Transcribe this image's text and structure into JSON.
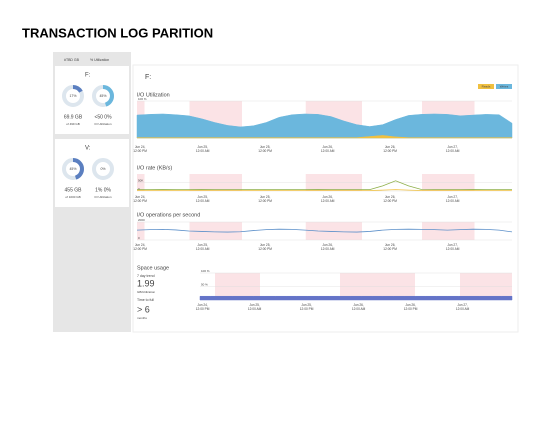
{
  "header": {
    "title": "TRANSACTION LOG PARITION"
  },
  "sidebar": {
    "tabs": [
      "#TBD GB",
      "% Utilization"
    ],
    "drives": [
      {
        "label": "F:",
        "donuts": [
          {
            "pct": 17,
            "label": "17%",
            "color": "#5b7fc0"
          },
          {
            "pct": 45,
            "label": "45%",
            "color": "#6bb7dd"
          }
        ],
        "stats": [
          {
            "value": "69.9 GB",
            "caption": "of 499 GB"
          },
          {
            "value": "<50 0%",
            "caption": "IO Utilization"
          }
        ]
      },
      {
        "label": "V:",
        "donuts": [
          {
            "pct": 45,
            "label": "45%",
            "color": "#5b7fc0"
          },
          {
            "pct": 0,
            "label": "0%",
            "color": "#6bb7dd"
          }
        ],
        "stats": [
          {
            "value": "455 GB",
            "caption": "of 1000 GB"
          },
          {
            "value": "1% 0%",
            "caption": "IO Utilization"
          }
        ]
      }
    ]
  },
  "main": {
    "drive": "F:",
    "legend": [
      {
        "name": "Reads",
        "color": "#f0c040"
      },
      {
        "name": "Writes",
        "color": "#6bb7dd"
      }
    ],
    "x_labels": [
      {
        "date": "Jun 24,",
        "time": "12:00 PM"
      },
      {
        "date": "Jun 25,",
        "time": "12:00 AM"
      },
      {
        "date": "Jun 25,",
        "time": "12:00 PM"
      },
      {
        "date": "Jun 26,",
        "time": "12:00 AM"
      },
      {
        "date": "Jun 26,",
        "time": "12:00 PM"
      },
      {
        "date": "Jun 27,",
        "time": "12:00 AM"
      }
    ],
    "charts": [
      {
        "title": "I/O Utilization",
        "ylim": [
          0,
          100
        ],
        "yticks": [
          {
            "value": 100,
            "label": "100 %"
          },
          {
            "value": 0,
            "label": "0"
          }
        ],
        "series": [
          {
            "name": "Writes",
            "color": "#6bb7dd",
            "area": true,
            "values": [
              62,
              64,
              65,
              63,
              60,
              52,
              42,
              34,
              30,
              33,
              42,
              56,
              63,
              65,
              64,
              58,
              46,
              36,
              31,
              36,
              50,
              61,
              64,
              65,
              64,
              60,
              62,
              64,
              63,
              40
            ]
          },
          {
            "name": "Reads",
            "color": "#f0c040",
            "area": true,
            "values": [
              1,
              1,
              1,
              1,
              1,
              1,
              1,
              1,
              1,
              1,
              1,
              1,
              1,
              1,
              1,
              1,
              1,
              1,
              4,
              7,
              3,
              1,
              1,
              1,
              1,
              1,
              1,
              1,
              1,
              1
            ]
          }
        ]
      },
      {
        "title": "I/O rate (KB/s)",
        "ylim": [
          0,
          100
        ],
        "yticks": [
          {
            "value": 50,
            "label": "50K"
          },
          {
            "value": 0,
            "label": "0"
          }
        ],
        "series": [
          {
            "name": "Writes",
            "color": "#8fb04a",
            "area": false,
            "values": [
              8,
              8,
              9,
              8,
              8,
              9,
              8,
              8,
              8,
              9,
              8,
              8,
              8,
              8,
              9,
              8,
              8,
              8,
              8,
              30,
              60,
              30,
              9,
              8,
              8,
              8,
              9,
              8,
              8,
              8
            ]
          },
          {
            "name": "Reads",
            "color": "#f0c040",
            "area": false,
            "values": [
              3,
              3,
              3,
              3,
              3,
              3,
              3,
              3,
              3,
              3,
              3,
              3,
              3,
              3,
              3,
              3,
              3,
              3,
              3,
              5,
              8,
              5,
              3,
              3,
              3,
              3,
              3,
              3,
              3,
              3
            ]
          }
        ]
      },
      {
        "title": "I/O operations per second",
        "ylim": [
          0,
          2000
        ],
        "yticks": [
          2000,
          0
        ],
        "series": [
          {
            "name": "Writes",
            "color": "#5b8fc9",
            "area": false,
            "values": [
              1100,
              1150,
              1180,
              1120,
              1000,
              950,
              900,
              880,
              920,
              1050,
              1150,
              1200,
              1180,
              1100,
              1000,
              950,
              900,
              880,
              950,
              1100,
              1180,
              1200,
              1180,
              1150,
              1100,
              1150,
              1200,
              1180,
              1100,
              900
            ]
          }
        ]
      }
    ],
    "space": {
      "title": "Space usage",
      "trend_label": "7 day trend",
      "trend_value": "1.99",
      "trend_caption": "GB/Utilization",
      "full_label": "Time to full",
      "full_value": "> 6",
      "full_caption": "months",
      "ylim": [
        0,
        100
      ],
      "yticks": [
        {
          "value": 100,
          "label": "100 %"
        },
        {
          "value": 50,
          "label": "50 %"
        }
      ],
      "series": [
        {
          "name": "Used",
          "color": "#6474c8",
          "values": [
            14,
            14,
            14,
            14,
            14,
            14,
            14,
            14,
            14,
            14,
            14,
            14,
            14,
            14,
            14,
            14,
            14,
            14,
            14,
            14,
            14,
            14,
            14,
            14,
            14,
            14,
            14,
            14,
            14,
            14
          ]
        }
      ]
    }
  }
}
